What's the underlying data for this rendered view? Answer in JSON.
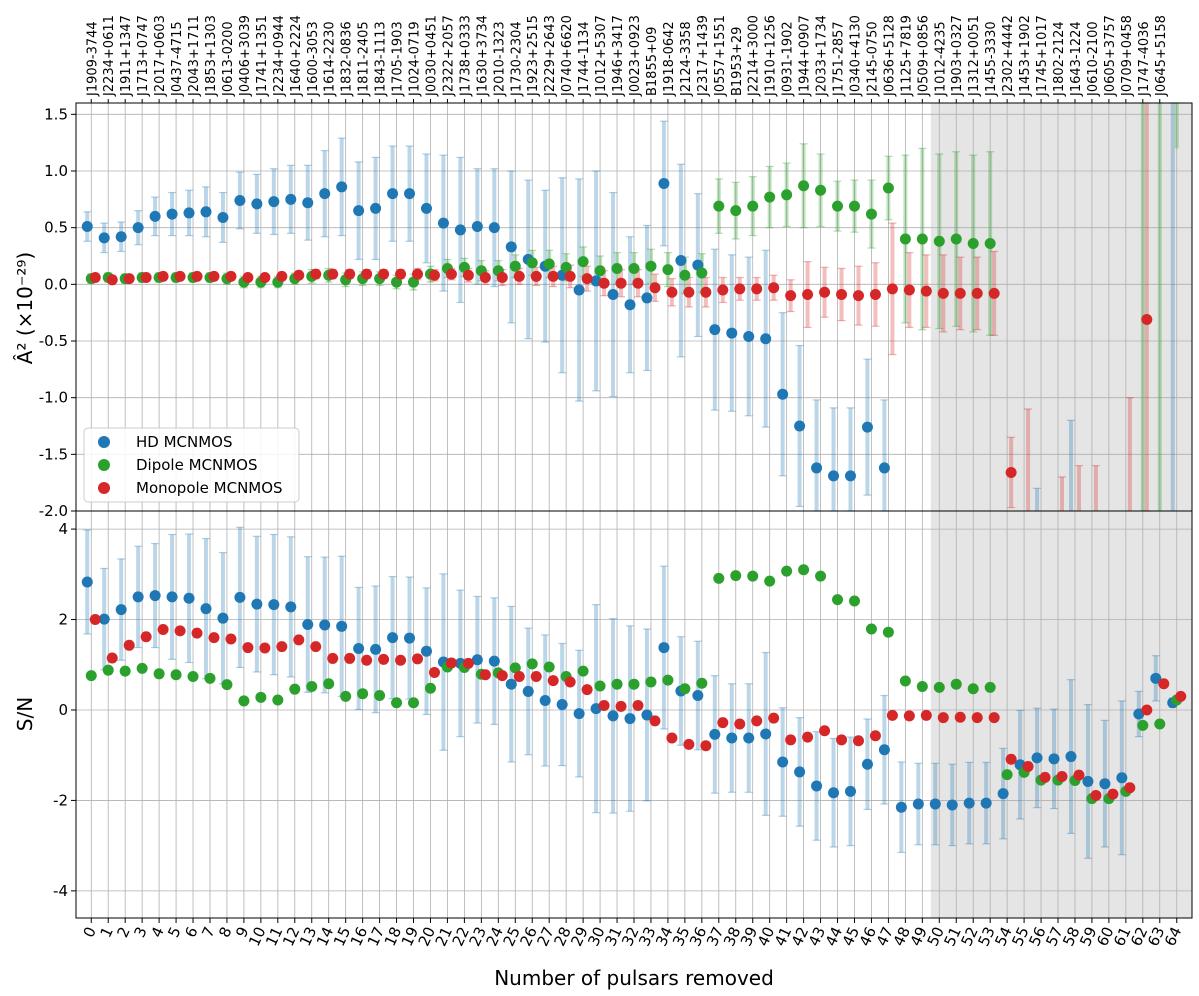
{
  "chart_data": {
    "type": "scatter",
    "xlabel": "Number of pulsars removed",
    "x": [
      0,
      1,
      2,
      3,
      4,
      5,
      6,
      7,
      8,
      9,
      10,
      11,
      12,
      13,
      14,
      15,
      16,
      17,
      18,
      19,
      20,
      21,
      22,
      23,
      24,
      25,
      26,
      27,
      28,
      29,
      30,
      31,
      32,
      33,
      34,
      35,
      36,
      37,
      38,
      39,
      40,
      41,
      42,
      43,
      44,
      45,
      46,
      47,
      48,
      49,
      50,
      51,
      52,
      53,
      54,
      55,
      56,
      57,
      58,
      59,
      60,
      61,
      62,
      63,
      64
    ],
    "pulsar_labels": [
      "J1909-3744",
      "J2234+0611",
      "J1911+1347",
      "J1713+0747",
      "J2017+0603",
      "J0437-4715",
      "J2043+1711",
      "J1853+1303",
      "J0613-0200",
      "J0406+3039",
      "J1741+1351",
      "J2234+0944",
      "J1640+2224",
      "J1600-3053",
      "J1614-2230",
      "J1832-0836",
      "J1811-2405",
      "J1843-1113",
      "J1705-1903",
      "J1024-0719",
      "J0030+0451",
      "J2322+2057",
      "J1738+0333",
      "J1630+3734",
      "J2010-1323",
      "J1730-2304",
      "J1923+2515",
      "J2229+2643",
      "J0740+6620",
      "J1744-1134",
      "J1012+5307",
      "J1946+3417",
      "J0023+0923",
      "B1855+09",
      "J1918-0642",
      "J2124-3358",
      "J2317+1439",
      "J0557+1551",
      "B1953+29",
      "J2214+3000",
      "J1910+1256",
      "J0931-1902",
      "J1944+0907",
      "J2033+1734",
      "J1751-2857",
      "J0340+4130",
      "J2145-0750",
      "J0636+5128",
      "J1125+7819",
      "J0509+0856",
      "J1012-4235",
      "J1903+0327",
      "J1312+0051",
      "J1455-3330",
      "J2302+4442",
      "J1453+1902",
      "J1745+1017",
      "J1802-2124",
      "J1643-1224",
      "J0610-2100",
      "J0605+3757",
      "J0709+0458",
      "J1747-4036",
      "J0645+5158"
    ],
    "legend_location": "lower-left",
    "grid": true,
    "shaded_region_x": [
      49.5,
      64.5
    ],
    "panels": [
      {
        "name": "A2",
        "ylabel": "Â² (×10⁻²⁹)",
        "ylim": [
          -2.0,
          1.6
        ],
        "yticks": [
          "-2.0",
          "-1.5",
          "-1.0",
          "-0.5",
          "0.0",
          "0.5",
          "1.0",
          "1.5"
        ],
        "series": [
          {
            "name": "HD MCNMOS",
            "color": "#1f77b4",
            "values": [
              0.51,
              0.41,
              0.42,
              0.5,
              0.6,
              0.62,
              0.63,
              0.64,
              0.59,
              0.74,
              0.71,
              0.73,
              0.75,
              0.72,
              0.8,
              0.86,
              0.65,
              0.67,
              0.8,
              0.8,
              0.67,
              0.54,
              0.48,
              0.51,
              0.5,
              0.33,
              0.22,
              0.16,
              0.08,
              -0.05,
              0.03,
              -0.09,
              -0.18,
              -0.12,
              0.89,
              0.21,
              0.17,
              -0.4,
              -0.43,
              -0.46,
              -0.48,
              -0.97,
              -1.25,
              -1.62,
              -1.69,
              -1.69,
              -1.26,
              -1.62,
              null,
              null,
              null,
              null,
              null,
              null,
              null,
              null,
              null,
              null,
              null,
              null,
              null,
              null,
              null,
              null,
              null
            ],
            "err": [
              0.13,
              0.13,
              0.13,
              0.15,
              0.17,
              0.19,
              0.2,
              0.22,
              0.22,
              0.25,
              0.26,
              0.29,
              0.3,
              0.33,
              0.38,
              0.43,
              0.43,
              0.45,
              0.42,
              0.42,
              0.48,
              0.6,
              0.64,
              0.51,
              0.52,
              0.67,
              0.7,
              0.67,
              0.86,
              0.98,
              0.97,
              0.9,
              0.6,
              0.64,
              0.55,
              0.85,
              0.63,
              0.71,
              0.69,
              0.7,
              0.78,
              0.72,
              0.71,
              0.6,
              0.6,
              0.6,
              0.6,
              0.6,
              0,
              0,
              0,
              0,
              0,
              0,
              0,
              0,
              0,
              0,
              0,
              0,
              0,
              0,
              0,
              0,
              0
            ],
            "offscreen_bars": [
              [
                56,
                -1.8,
                -2.0
              ],
              [
                58,
                -1.2,
                -2.0
              ],
              [
                64,
                1.6,
                -2.0
              ]
            ]
          },
          {
            "name": "Dipole MCNMOS",
            "color": "#2ca02c",
            "values": [
              0.05,
              0.06,
              0.05,
              0.06,
              0.06,
              0.06,
              0.06,
              0.06,
              0.05,
              0.02,
              0.02,
              0.02,
              0.05,
              0.07,
              0.08,
              0.04,
              0.05,
              0.05,
              0.02,
              0.02,
              0.09,
              0.14,
              0.15,
              0.12,
              0.12,
              0.16,
              0.19,
              0.18,
              0.15,
              0.2,
              0.12,
              0.14,
              0.14,
              0.16,
              0.13,
              0.08,
              0.1,
              0.69,
              0.65,
              0.69,
              0.77,
              0.79,
              0.87,
              0.83,
              0.69,
              0.69,
              0.62,
              0.85,
              0.4,
              0.4,
              0.38,
              0.4,
              0.36,
              0.36,
              null,
              null,
              null,
              null,
              null,
              null,
              null,
              null,
              null,
              null,
              null
            ],
            "err": [
              0.04,
              0.04,
              0.04,
              0.04,
              0.04,
              0.04,
              0.04,
              0.04,
              0.05,
              0.05,
              0.05,
              0.05,
              0.05,
              0.06,
              0.06,
              0.06,
              0.06,
              0.06,
              0.06,
              0.07,
              0.07,
              0.08,
              0.08,
              0.09,
              0.09,
              0.1,
              0.11,
              0.12,
              0.12,
              0.13,
              0.13,
              0.14,
              0.14,
              0.15,
              0.15,
              0.16,
              0.17,
              0.24,
              0.25,
              0.26,
              0.27,
              0.28,
              0.37,
              0.32,
              0.22,
              0.23,
              0.3,
              0.28,
              0.74,
              0.8,
              0.77,
              0.77,
              0.78,
              0.81,
              0,
              0,
              0,
              0,
              0,
              0,
              0,
              0,
              0,
              0,
              0
            ],
            "offscreen_bars": [
              [
                62,
                1.6,
                -2.0
              ],
              [
                63,
                1.6,
                -2.0
              ],
              [
                64,
                1.6,
                1.2
              ]
            ]
          },
          {
            "name": "Monopole MCNMOS",
            "color": "#d62728",
            "values": [
              0.06,
              0.04,
              0.05,
              0.06,
              0.07,
              0.07,
              0.07,
              0.07,
              0.07,
              0.06,
              0.06,
              0.07,
              0.08,
              0.09,
              0.09,
              0.09,
              0.09,
              0.09,
              0.09,
              0.09,
              0.08,
              0.09,
              0.08,
              0.06,
              0.06,
              0.07,
              0.07,
              0.07,
              0.07,
              0.05,
              0.01,
              0.01,
              0.01,
              -0.03,
              -0.07,
              -0.07,
              -0.07,
              -0.05,
              -0.04,
              -0.04,
              -0.03,
              -0.1,
              -0.09,
              -0.07,
              -0.09,
              -0.1,
              -0.09,
              -0.04,
              -0.05,
              -0.06,
              -0.08,
              -0.08,
              -0.08,
              -0.08,
              -1.66,
              null,
              null,
              null,
              null,
              null,
              null,
              null,
              -0.31,
              null,
              null
            ],
            "err": [
              0.03,
              0.03,
              0.03,
              0.03,
              0.03,
              0.03,
              0.03,
              0.03,
              0.03,
              0.03,
              0.03,
              0.03,
              0.03,
              0.04,
              0.04,
              0.04,
              0.04,
              0.04,
              0.04,
              0.05,
              0.05,
              0.05,
              0.06,
              0.06,
              0.07,
              0.07,
              0.08,
              0.09,
              0.1,
              0.11,
              0.11,
              0.12,
              0.12,
              0.12,
              0.12,
              0.13,
              0.13,
              0.11,
              0.1,
              0.1,
              0.11,
              0.14,
              0.29,
              0.22,
              0.23,
              0.26,
              0.28,
              0.58,
              0.33,
              0.32,
              0.34,
              0.32,
              0.32,
              0.37,
              0.31,
              0,
              0,
              0,
              0,
              0,
              0,
              0,
              1.91,
              0,
              0
            ],
            "offscreen_bars": [
              [
                55,
                -1.1,
                -2.0
              ],
              [
                57,
                -1.7,
                -2.0
              ],
              [
                58,
                -1.6,
                -2.0
              ],
              [
                59,
                -1.6,
                -2.0
              ],
              [
                61,
                -1.0,
                -2.0
              ]
            ]
          }
        ]
      },
      {
        "name": "SN",
        "ylabel": "S/N",
        "ylim": [
          -4.6,
          4.4
        ],
        "yticks": [
          "-4",
          "-2",
          "0",
          "2",
          "4"
        ],
        "series": [
          {
            "name": "HD MCNMOS",
            "color": "#1f77b4",
            "values": [
              2.83,
              2.01,
              2.22,
              2.5,
              2.53,
              2.5,
              2.47,
              2.24,
              2.03,
              2.49,
              2.34,
              2.33,
              2.28,
              1.89,
              1.88,
              1.85,
              1.36,
              1.34,
              1.6,
              1.59,
              1.3,
              1.06,
              1.03,
              1.11,
              1.08,
              0.57,
              0.41,
              0.21,
              0.12,
              -0.08,
              0.03,
              -0.13,
              -0.19,
              -0.11,
              1.38,
              0.42,
              0.32,
              -0.54,
              -0.62,
              -0.62,
              -0.53,
              -1.15,
              -1.37,
              -1.68,
              -1.83,
              -1.8,
              -1.2,
              -0.88,
              -2.15,
              -2.08,
              -2.08,
              -2.1,
              -2.06,
              -2.06,
              -1.85,
              -1.21,
              -1.06,
              -1.08,
              -1.03,
              -1.58,
              -1.63,
              -1.5,
              -0.09,
              0.7,
              0.16
            ],
            "err": [
              1.15,
              1.12,
              1.12,
              1.12,
              1.15,
              1.38,
              1.42,
              1.55,
              1.45,
              1.55,
              1.5,
              1.55,
              1.55,
              1.5,
              1.5,
              1.55,
              1.35,
              1.4,
              1.35,
              1.35,
              1.4,
              1.95,
              1.62,
              1.4,
              1.4,
              1.72,
              1.4,
              1.45,
              1.35,
              1.4,
              2.3,
              2.15,
              2.05,
              1.9,
              1.8,
              1.2,
              1.2,
              1.3,
              1.2,
              1.2,
              1.8,
              1.2,
              1.2,
              1.2,
              1.2,
              1.2,
              1.0,
              1.2,
              1.0,
              0.9,
              0.9,
              0.9,
              0.9,
              0.9,
              1.0,
              1.2,
              1.1,
              1.1,
              1.7,
              1.7,
              1.4,
              1.7,
              0.5,
              0.5,
              0.1
            ]
          },
          {
            "name": "Dipole MCNMOS",
            "color": "#2ca02c",
            "values": [
              0.76,
              0.88,
              0.86,
              0.92,
              0.8,
              0.78,
              0.74,
              0.7,
              0.56,
              0.2,
              0.28,
              0.22,
              0.46,
              0.52,
              0.58,
              0.3,
              0.36,
              0.32,
              0.16,
              0.16,
              0.48,
              0.95,
              0.94,
              0.79,
              0.82,
              0.93,
              1.02,
              0.95,
              0.74,
              0.86,
              0.53,
              0.57,
              0.57,
              0.62,
              0.66,
              0.47,
              0.59,
              2.91,
              2.97,
              2.96,
              2.85,
              3.07,
              3.1,
              2.96,
              2.44,
              2.41,
              1.79,
              1.72,
              0.64,
              0.52,
              0.5,
              0.57,
              0.47,
              0.5,
              -1.43,
              -1.38,
              -1.55,
              -1.55,
              -1.56,
              -1.96,
              -1.96,
              -1.8,
              -0.34,
              -0.31,
              0.22
            ]
          },
          {
            "name": "Monopole MCNMOS",
            "color": "#d62728",
            "values": [
              2.0,
              1.15,
              1.43,
              1.62,
              1.78,
              1.75,
              1.7,
              1.6,
              1.57,
              1.38,
              1.37,
              1.4,
              1.55,
              1.4,
              1.14,
              1.14,
              1.1,
              1.12,
              1.1,
              1.13,
              0.83,
              1.04,
              1.03,
              0.78,
              0.76,
              0.74,
              0.74,
              0.65,
              0.62,
              0.45,
              0.1,
              0.08,
              0.1,
              -0.24,
              -0.62,
              -0.76,
              -0.79,
              -0.28,
              -0.31,
              -0.24,
              -0.18,
              -0.66,
              -0.6,
              -0.46,
              -0.66,
              -0.68,
              -0.57,
              -0.12,
              -0.13,
              -0.12,
              -0.17,
              -0.16,
              -0.17,
              -0.17,
              -1.09,
              -1.25,
              -1.49,
              -1.47,
              -1.44,
              -1.89,
              -1.86,
              -1.72,
              0.0,
              0.58,
              0.3
            ]
          }
        ]
      }
    ]
  }
}
